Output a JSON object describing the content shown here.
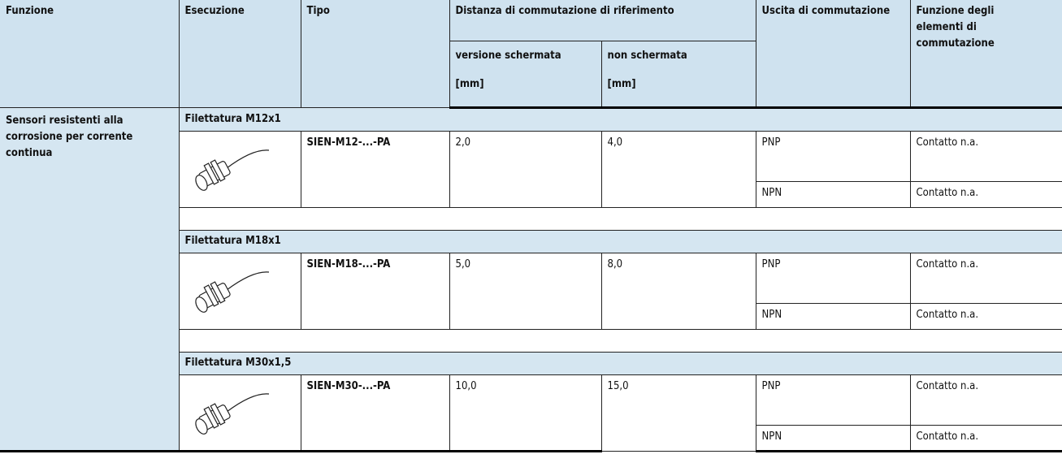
{
  "header": {
    "funzione": "Funzione",
    "esecuzione": "Esecuzione",
    "tipo": "Tipo",
    "distanza": "Distanza di commutazione di riferimento",
    "versione_schermata": "versione schermata",
    "non_schermata": "non schermata",
    "unit_schermata": "[mm]",
    "unit_non_schermata": "[mm]",
    "uscita": "Uscita di commutazione",
    "funzione_elementi": "Funzione degli elementi di commutazione"
  },
  "function_label": "Sensori resistenti alla corrosione per corrente continua",
  "groups": [
    {
      "title": "Filettatura M12x1",
      "type": "SIEN-M12-...-PA",
      "shielded": "2,0",
      "unshielded": "4,0",
      "outputs": [
        {
          "output": "PNP",
          "function": "Contatto n.a."
        },
        {
          "output": "NPN",
          "function": "Contatto n.a."
        }
      ]
    },
    {
      "title": "Filettatura M18x1",
      "type": "SIEN-M18-...-PA",
      "shielded": "5,0",
      "unshielded": "8,0",
      "outputs": [
        {
          "output": "PNP",
          "function": "Contatto n.a."
        },
        {
          "output": "NPN",
          "function": "Contatto n.a."
        }
      ]
    },
    {
      "title": "Filettatura M30x1,5",
      "type": "SIEN-M30-...-PA",
      "shielded": "10,0",
      "unshielded": "15,0",
      "outputs": [
        {
          "output": "PNP",
          "function": "Contatto n.a."
        },
        {
          "output": "NPN",
          "function": "Contatto n.a."
        }
      ]
    }
  ]
}
